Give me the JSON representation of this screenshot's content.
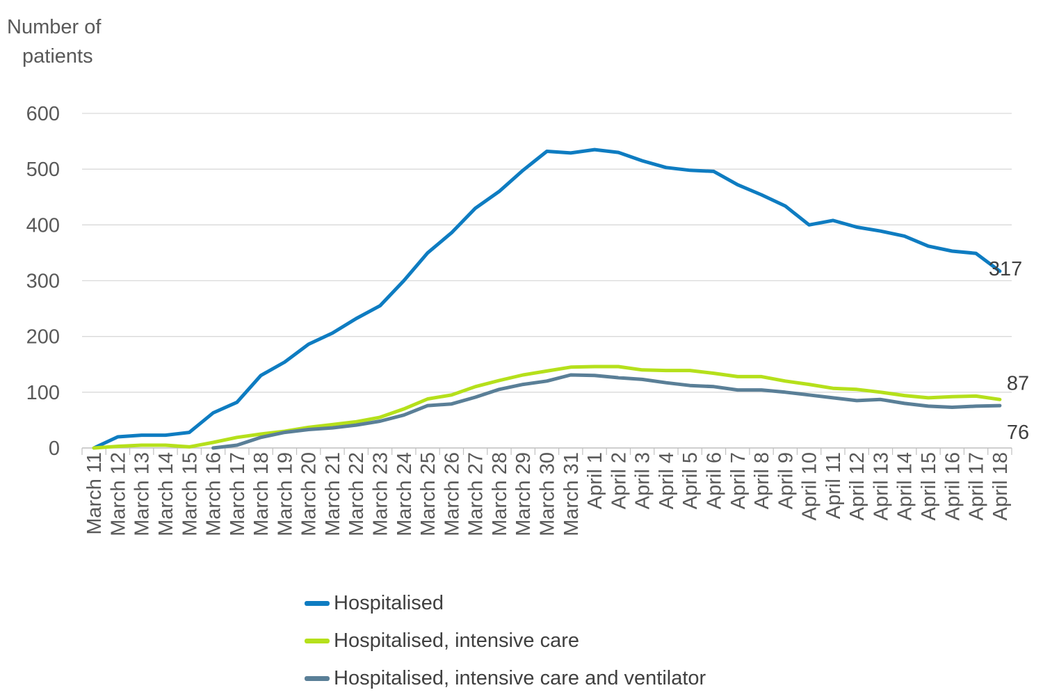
{
  "chart_data": {
    "type": "line",
    "ylabel": "Number of patients",
    "ylim": [
      0,
      600
    ],
    "yticks": [
      0,
      100,
      200,
      300,
      400,
      500,
      600
    ],
    "grid": true,
    "legend_position": "bottom",
    "categories": [
      "March 11",
      "March 12",
      "March 13",
      "March 14",
      "March 15",
      "March 16",
      "March 17",
      "March 18",
      "March 19",
      "March 20",
      "March 21",
      "March 22",
      "March 23",
      "March 24",
      "March 25",
      "March 26",
      "March 27",
      "March 28",
      "March 29",
      "March 30",
      "March 31",
      "April 1",
      "April 2",
      "April 3",
      "April 4",
      "April 5",
      "April 6",
      "April 7",
      "April 8",
      "April 9",
      "April 10",
      "April 11",
      "April 12",
      "April 13",
      "April 14",
      "April 15",
      "April 16",
      "April 17",
      "April 18"
    ],
    "series": [
      {
        "name": "Hospitalised",
        "color": "#0E7CC1",
        "values": [
          0,
          20,
          23,
          23,
          28,
          63,
          82,
          130,
          154,
          186,
          206,
          232,
          255,
          300,
          350,
          386,
          430,
          460,
          498,
          532,
          529,
          535,
          530,
          515,
          503,
          498,
          496,
          472,
          454,
          434,
          400,
          408,
          396,
          389,
          380,
          362,
          353,
          349,
          317
        ],
        "end_label": "317"
      },
      {
        "name": "Hospitalised, intensive care",
        "color": "#B5E01B",
        "values": [
          0,
          3,
          5,
          5,
          2,
          10,
          19,
          25,
          30,
          37,
          42,
          47,
          55,
          70,
          88,
          95,
          110,
          121,
          131,
          138,
          145,
          146,
          146,
          140,
          139,
          139,
          134,
          128,
          128,
          120,
          114,
          107,
          105,
          100,
          94,
          90,
          92,
          93,
          87
        ],
        "end_label": "87"
      },
      {
        "name": "Hospitalised, intensive care and ventilator",
        "color": "#5A7F97",
        "values": [
          null,
          null,
          null,
          null,
          null,
          0,
          5,
          19,
          28,
          33,
          36,
          41,
          48,
          59,
          76,
          79,
          91,
          105,
          114,
          120,
          131,
          130,
          126,
          123,
          117,
          112,
          110,
          104,
          104,
          100,
          95,
          90,
          85,
          87,
          80,
          75,
          73,
          75,
          76
        ],
        "end_label": "76"
      }
    ]
  },
  "ylabel_line1": "Number of",
  "ylabel_line2": "patients"
}
